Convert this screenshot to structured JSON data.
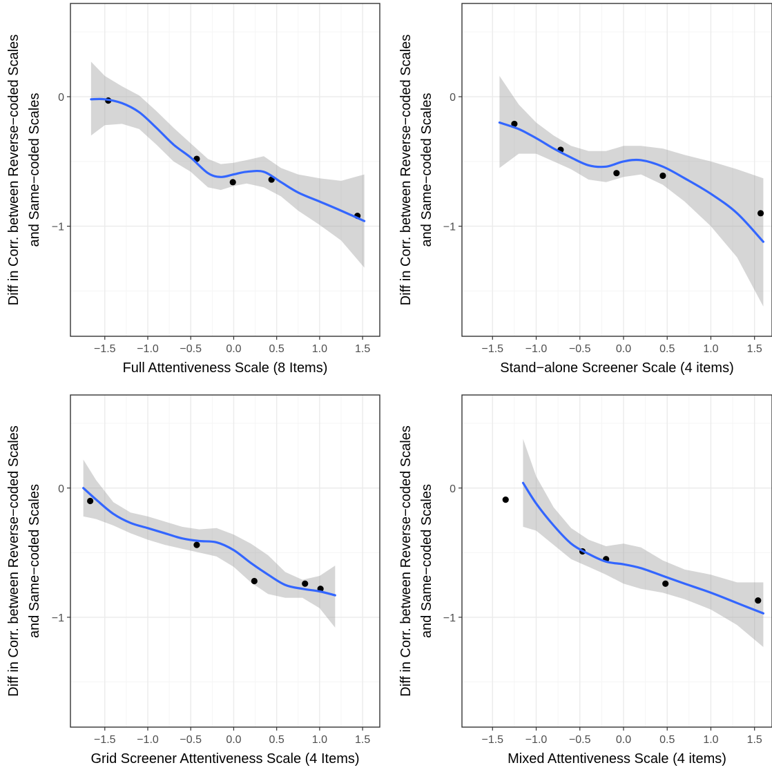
{
  "chart_data": [
    {
      "type": "scatter",
      "xlabel": "Full Attentiveness Scale (8 Items)",
      "ylabel_line1": "Diff in Corr. between Reverse−coded Scales",
      "ylabel_line2": "and Same−coded Scales",
      "xlim": [
        -1.9,
        1.7
      ],
      "ylim": [
        -1.85,
        0.72
      ],
      "xticks": [
        -1.5,
        -1.0,
        -0.5,
        0.0,
        0.5,
        1.0,
        1.5
      ],
      "xtick_labels": [
        "−1.5",
        "−1.0",
        "−0.5",
        "0.0",
        "0.5",
        "1.0",
        "1.5"
      ],
      "yticks": [
        0,
        -1
      ],
      "ytick_labels": [
        "0",
        "−1"
      ],
      "points": [
        {
          "x": -1.46,
          "y": -0.03
        },
        {
          "x": -0.43,
          "y": -0.48
        },
        {
          "x": -0.01,
          "y": -0.66
        },
        {
          "x": 0.44,
          "y": -0.64
        },
        {
          "x": 1.44,
          "y": -0.92
        }
      ],
      "smooth": {
        "x": [
          -1.66,
          -1.5,
          -1.3,
          -1.1,
          -0.9,
          -0.7,
          -0.5,
          -0.3,
          -0.15,
          0.0,
          0.15,
          0.35,
          0.55,
          0.75,
          1.0,
          1.25,
          1.52
        ],
        "y": [
          -0.02,
          -0.02,
          -0.05,
          -0.12,
          -0.24,
          -0.37,
          -0.47,
          -0.59,
          -0.62,
          -0.6,
          -0.58,
          -0.58,
          -0.66,
          -0.74,
          -0.81,
          -0.88,
          -0.96
        ],
        "lower": [
          -0.3,
          -0.22,
          -0.21,
          -0.25,
          -0.37,
          -0.5,
          -0.58,
          -0.7,
          -0.72,
          -0.69,
          -0.67,
          -0.7,
          -0.77,
          -0.88,
          -0.99,
          -1.11,
          -1.32
        ],
        "upper": [
          0.27,
          0.16,
          0.08,
          0.01,
          -0.11,
          -0.24,
          -0.36,
          -0.48,
          -0.52,
          -0.51,
          -0.49,
          -0.46,
          -0.55,
          -0.6,
          -0.63,
          -0.65,
          -0.6
        ]
      }
    },
    {
      "type": "scatter",
      "xlabel": "Stand−alone Screener Scale (4 items)",
      "ylabel_line1": "Diff in Corr. between Reverse−coded Scales",
      "ylabel_line2": "and Same−coded Scales",
      "xlim": [
        -1.85,
        1.7
      ],
      "ylim": [
        -1.85,
        0.72
      ],
      "xticks": [
        -1.5,
        -1.0,
        -0.5,
        0.0,
        0.5,
        1.0,
        1.5
      ],
      "xtick_labels": [
        "−1.5",
        "−1.0",
        "−0.5",
        "0.0",
        "0.5",
        "1.0",
        "1.5"
      ],
      "yticks": [
        0,
        -1
      ],
      "ytick_labels": [
        "0",
        "−1"
      ],
      "points": [
        {
          "x": -1.25,
          "y": -0.21
        },
        {
          "x": -0.72,
          "y": -0.41
        },
        {
          "x": -0.08,
          "y": -0.59
        },
        {
          "x": 0.45,
          "y": -0.61
        },
        {
          "x": 1.57,
          "y": -0.9
        }
      ],
      "smooth": {
        "x": [
          -1.42,
          -1.2,
          -1.0,
          -0.8,
          -0.6,
          -0.4,
          -0.2,
          0.0,
          0.2,
          0.45,
          0.7,
          1.0,
          1.3,
          1.6
        ],
        "y": [
          -0.2,
          -0.25,
          -0.32,
          -0.4,
          -0.47,
          -0.53,
          -0.54,
          -0.5,
          -0.49,
          -0.54,
          -0.63,
          -0.75,
          -0.9,
          -1.12
        ],
        "lower": [
          -0.55,
          -0.44,
          -0.44,
          -0.5,
          -0.56,
          -0.64,
          -0.66,
          -0.62,
          -0.6,
          -0.68,
          -0.81,
          -1.0,
          -1.24,
          -1.62
        ],
        "upper": [
          0.16,
          -0.06,
          -0.2,
          -0.3,
          -0.38,
          -0.42,
          -0.42,
          -0.38,
          -0.38,
          -0.4,
          -0.45,
          -0.5,
          -0.56,
          -0.63
        ]
      }
    },
    {
      "type": "scatter",
      "xlabel": "Grid Screener Attentiveness Scale (4 Items)",
      "ylabel_line1": "Diff in Corr. between Reverse−coded Scales",
      "ylabel_line2": "and Same−coded Scales",
      "xlim": [
        -1.9,
        1.7
      ],
      "ylim": [
        -1.85,
        0.72
      ],
      "xticks": [
        -1.5,
        -1.0,
        -0.5,
        0.0,
        0.5,
        1.0,
        1.5
      ],
      "xtick_labels": [
        "−1.5",
        "−1.0",
        "−0.5",
        "0.0",
        "0.5",
        "1.0",
        "1.5"
      ],
      "yticks": [
        0,
        -1
      ],
      "ytick_labels": [
        "0",
        "−1"
      ],
      "points": [
        {
          "x": -1.67,
          "y": -0.1
        },
        {
          "x": -0.43,
          "y": -0.44
        },
        {
          "x": 0.24,
          "y": -0.72
        },
        {
          "x": 0.83,
          "y": -0.74
        },
        {
          "x": 1.01,
          "y": -0.78
        }
      ],
      "smooth": {
        "x": [
          -1.75,
          -1.6,
          -1.4,
          -1.2,
          -1.0,
          -0.8,
          -0.6,
          -0.4,
          -0.2,
          0.0,
          0.2,
          0.4,
          0.6,
          0.8,
          1.0,
          1.18
        ],
        "y": [
          0.0,
          -0.09,
          -0.2,
          -0.27,
          -0.31,
          -0.35,
          -0.39,
          -0.41,
          -0.42,
          -0.48,
          -0.58,
          -0.67,
          -0.75,
          -0.78,
          -0.8,
          -0.83
        ],
        "lower": [
          -0.22,
          -0.24,
          -0.29,
          -0.35,
          -0.4,
          -0.44,
          -0.47,
          -0.5,
          -0.53,
          -0.61,
          -0.73,
          -0.82,
          -0.85,
          -0.85,
          -0.93,
          -1.08
        ],
        "upper": [
          0.22,
          0.06,
          -0.11,
          -0.19,
          -0.22,
          -0.26,
          -0.3,
          -0.32,
          -0.31,
          -0.36,
          -0.43,
          -0.52,
          -0.65,
          -0.71,
          -0.68,
          -0.6
        ]
      }
    },
    {
      "type": "scatter",
      "xlabel": "Mixed Attentiveness Scale (4 items)",
      "ylabel_line1": "Diff in Corr. between Reverse−coded Scales",
      "ylabel_line2": "and Same−coded Scales",
      "xlim": [
        -1.85,
        1.7
      ],
      "ylim": [
        -1.85,
        0.72
      ],
      "xticks": [
        -1.5,
        -1.0,
        -0.5,
        0.0,
        0.5,
        1.0,
        1.5
      ],
      "xtick_labels": [
        "−1.5",
        "−1.0",
        "−0.5",
        "0.0",
        "0.5",
        "1.0",
        "1.5"
      ],
      "yticks": [
        0,
        -1
      ],
      "ytick_labels": [
        "0",
        "−1"
      ],
      "points": [
        {
          "x": -1.35,
          "y": -0.09
        },
        {
          "x": -0.47,
          "y": -0.49
        },
        {
          "x": -0.2,
          "y": -0.55
        },
        {
          "x": 0.48,
          "y": -0.74
        },
        {
          "x": 1.54,
          "y": -0.87
        }
      ],
      "smooth": {
        "x": [
          -1.15,
          -1.0,
          -0.8,
          -0.6,
          -0.4,
          -0.2,
          0.0,
          0.2,
          0.45,
          0.7,
          1.0,
          1.3,
          1.6
        ],
        "y": [
          0.04,
          -0.12,
          -0.29,
          -0.43,
          -0.51,
          -0.57,
          -0.59,
          -0.62,
          -0.68,
          -0.74,
          -0.81,
          -0.89,
          -0.97
        ],
        "lower": [
          -0.3,
          -0.33,
          -0.44,
          -0.55,
          -0.61,
          -0.67,
          -0.74,
          -0.78,
          -0.81,
          -0.86,
          -0.94,
          -1.06,
          -1.23
        ],
        "upper": [
          0.38,
          0.09,
          -0.15,
          -0.31,
          -0.4,
          -0.45,
          -0.43,
          -0.46,
          -0.56,
          -0.63,
          -0.67,
          -0.73,
          -0.73
        ]
      }
    }
  ],
  "colors": {
    "smooth_line": "#3366FF",
    "ribbon": "#999999",
    "point": "#000000",
    "grid_major": "#EBEBEB",
    "grid_minor": "#F5F5F5",
    "panel_border": "#333333",
    "tick_text": "#4D4D4D",
    "axis_title": "#000000"
  }
}
